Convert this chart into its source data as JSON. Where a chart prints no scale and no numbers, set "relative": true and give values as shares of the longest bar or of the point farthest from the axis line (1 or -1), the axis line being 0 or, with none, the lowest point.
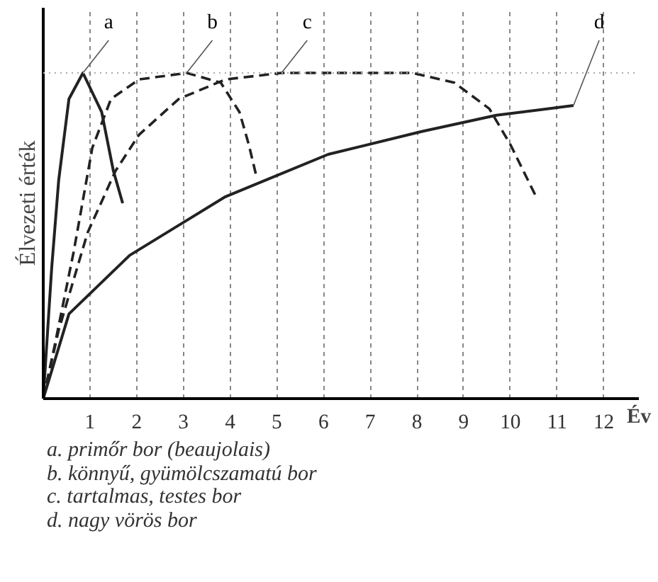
{
  "chart_data": {
    "type": "line",
    "relative": true,
    "ylabel": "Élvezeti érték",
    "xlabel": "Év",
    "xlim": [
      0,
      12.75
    ],
    "xticks": [
      1,
      2,
      3,
      4,
      5,
      6,
      7,
      8,
      9,
      10,
      11,
      12
    ],
    "grid": "x",
    "marker": "none",
    "ref_lines": [
      {
        "axis": "y",
        "value": 1,
        "color": "#aaaaaa",
        "line_style": "dotted"
      }
    ],
    "series": [
      {
        "name": "a",
        "color": "#222222",
        "line_style": "solid",
        "x": [
          0,
          0.18,
          0.33,
          0.55,
          0.85,
          1.25,
          1.5,
          1.7
        ],
        "values": [
          0,
          0.4,
          0.67,
          0.92,
          1,
          0.88,
          0.7,
          0.6
        ]
      },
      {
        "name": "b",
        "color": "#222222",
        "line_style": "dashed",
        "x": [
          0,
          0.24,
          0.65,
          1.05,
          1.45,
          2.05,
          3.07,
          3.8,
          4.2,
          4.4,
          4.55
        ],
        "values": [
          0,
          0.16,
          0.45,
          0.77,
          0.92,
          0.98,
          1,
          0.97,
          0.88,
          0.78,
          0.69
        ]
      },
      {
        "name": "c",
        "color": "#222222",
        "line_style": "dashed",
        "x": [
          0,
          0.33,
          0.95,
          1.55,
          2.05,
          2.9,
          3.9,
          5.1,
          7.9,
          8.8,
          9.55,
          10.0,
          10.55
        ],
        "values": [
          0,
          0.21,
          0.51,
          0.7,
          0.81,
          0.92,
          0.98,
          1,
          1,
          0.97,
          0.89,
          0.78,
          0.62
        ]
      },
      {
        "name": "d",
        "color": "#222222",
        "line_style": "solid",
        "x": [
          0,
          0.55,
          1.85,
          3.9,
          6.1,
          8.1,
          9.7,
          11.35
        ],
        "values": [
          0,
          0.26,
          0.44,
          0.62,
          0.75,
          0.82,
          0.87,
          0.9
        ]
      }
    ],
    "annotations": [
      "a.   primőr bor (beaujolais)",
      "b.   könnyű, gyümölcszamatú bor",
      "c.   tartalmas, testes bor",
      "d.   nagy vörös bor"
    ]
  }
}
